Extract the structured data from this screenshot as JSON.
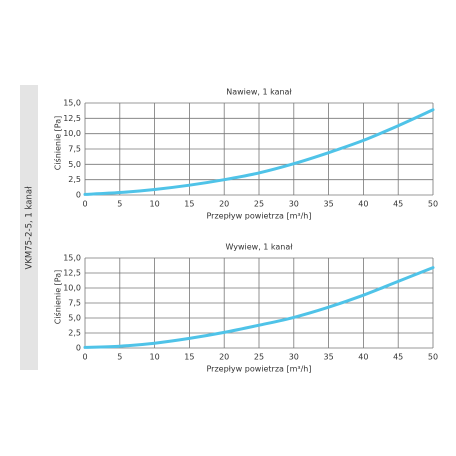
{
  "side_label": "VKM75-2-5, 1 kanał",
  "chart_data": [
    {
      "type": "line",
      "title": "Nawiew, 1 kanał",
      "xlabel": "Przepływ powietrza [m³/h]",
      "ylabel": "Ciśnienie [Pa]",
      "x": [
        0,
        5,
        10,
        15,
        20,
        25,
        30,
        35,
        40,
        45,
        50
      ],
      "series": [
        {
          "name": "Nawiew",
          "color": "#4fc3e8",
          "values": [
            0.1,
            0.4,
            0.9,
            1.6,
            2.5,
            3.6,
            5.1,
            6.9,
            8.9,
            11.3,
            13.9
          ]
        }
      ],
      "xlim": [
        0,
        50
      ],
      "xticks": [
        0,
        5,
        10,
        15,
        20,
        25,
        30,
        35,
        40,
        45,
        50
      ],
      "ylim": [
        0,
        15
      ],
      "yticks": [
        0,
        {
          "value": 2.5,
          "label": "2,5"
        },
        {
          "value": 5,
          "label": "5,0"
        },
        {
          "value": 7.5,
          "label": "7,5"
        },
        {
          "value": 10,
          "label": "10,0"
        },
        {
          "value": 12.5,
          "label": "12,5"
        },
        {
          "value": 15,
          "label": "15,0"
        }
      ],
      "grid": true
    },
    {
      "type": "line",
      "title": "Wywiew, 1 kanał",
      "xlabel": "Przepływ powietrza [m³/h]",
      "ylabel": "Ciśnienie [Pa]",
      "x": [
        0,
        5,
        10,
        15,
        20,
        25,
        30,
        35,
        40,
        45,
        50
      ],
      "series": [
        {
          "name": "Wywiew",
          "color": "#4fc3e8",
          "values": [
            0.1,
            0.3,
            0.8,
            1.6,
            2.6,
            3.8,
            5.1,
            6.8,
            8.8,
            11.1,
            13.4
          ]
        }
      ],
      "xlim": [
        0,
        50
      ],
      "xticks": [
        0,
        5,
        10,
        15,
        20,
        25,
        30,
        35,
        40,
        45,
        50
      ],
      "ylim": [
        0,
        15
      ],
      "yticks": [
        0,
        {
          "value": 2.5,
          "label": "2,5"
        },
        {
          "value": 5,
          "label": "5,0"
        },
        {
          "value": 7.5,
          "label": "7,5"
        },
        {
          "value": 10,
          "label": "10,0"
        },
        {
          "value": 12.5,
          "label": "12,5"
        },
        {
          "value": 15,
          "label": "15,0"
        }
      ],
      "grid": true
    }
  ]
}
